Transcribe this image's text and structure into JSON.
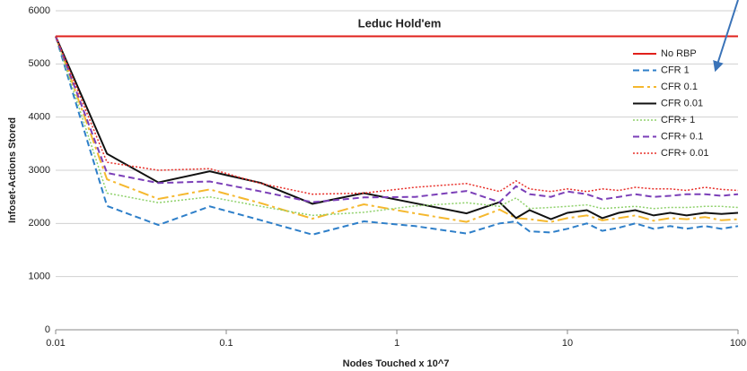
{
  "chart_data": {
    "type": "line",
    "title": "Leduc Hold'em",
    "xlabel": "Nodes Touched x 10^7",
    "ylabel": "Infoset-Actions Stored",
    "xscale": "log",
    "x": [
      0.01,
      0.02,
      0.04,
      0.08,
      0.16,
      0.32,
      0.64,
      1.28,
      2.56,
      4,
      5,
      6,
      8,
      10,
      13,
      16,
      20,
      25,
      32,
      40,
      50,
      64,
      80,
      100
    ],
    "xlim": [
      0.01,
      100
    ],
    "xticks": [
      0.01,
      0.1,
      1,
      10,
      100
    ],
    "ylim": [
      0,
      6000
    ],
    "yticks": [
      0,
      1000,
      2000,
      3000,
      4000,
      5000,
      6000
    ],
    "grid": true,
    "legend": "right",
    "series": [
      {
        "name": "No RBP",
        "color": "#e0201b",
        "dash": "solid",
        "width": 2,
        "values": [
          5520,
          5520,
          5520,
          5520,
          5520,
          5520,
          5520,
          5520,
          5520,
          5520,
          5520,
          5520,
          5520,
          5520,
          5520,
          5520,
          5520,
          5520,
          5520,
          5520,
          5520,
          5520,
          5520,
          5520
        ]
      },
      {
        "name": "CFR 1",
        "color": "#2e7fc9",
        "dash": "dashed",
        "width": 2,
        "values": [
          5520,
          2330,
          1970,
          2320,
          2060,
          1790,
          2040,
          1950,
          1810,
          2000,
          2040,
          1850,
          1830,
          1900,
          2000,
          1860,
          1920,
          2000,
          1900,
          1950,
          1900,
          1950,
          1900,
          1950
        ]
      },
      {
        "name": "CFR 0.1",
        "color": "#f5b82e",
        "dash": "dashdot",
        "width": 2,
        "values": [
          5520,
          2830,
          2460,
          2640,
          2380,
          2090,
          2360,
          2190,
          2030,
          2260,
          2100,
          2080,
          2030,
          2100,
          2150,
          2060,
          2100,
          2150,
          2050,
          2100,
          2080,
          2120,
          2060,
          2080
        ]
      },
      {
        "name": "CFR 0.01",
        "color": "#111111",
        "dash": "solid",
        "width": 2,
        "values": [
          5520,
          3310,
          2770,
          2980,
          2760,
          2370,
          2570,
          2380,
          2190,
          2400,
          2100,
          2250,
          2080,
          2200,
          2250,
          2100,
          2200,
          2250,
          2150,
          2200,
          2150,
          2200,
          2180,
          2200
        ]
      },
      {
        "name": "CFR+ 1",
        "color": "#8fd16b",
        "dash": "dotted",
        "width": 1.5,
        "values": [
          5520,
          2570,
          2390,
          2500,
          2320,
          2150,
          2210,
          2330,
          2390,
          2320,
          2480,
          2280,
          2300,
          2320,
          2350,
          2280,
          2300,
          2320,
          2280,
          2300,
          2300,
          2320,
          2320,
          2300
        ]
      },
      {
        "name": "CFR+ 0.1",
        "color": "#7b3fb8",
        "dash": "dashed",
        "width": 2,
        "values": [
          5520,
          2950,
          2760,
          2790,
          2600,
          2400,
          2490,
          2500,
          2610,
          2400,
          2700,
          2550,
          2500,
          2600,
          2550,
          2450,
          2500,
          2550,
          2500,
          2520,
          2550,
          2550,
          2520,
          2550
        ]
      },
      {
        "name": "CFR+ 0.01",
        "color": "#e8302a",
        "dash": "dotted",
        "width": 1.5,
        "values": [
          5520,
          3150,
          3000,
          3030,
          2750,
          2550,
          2570,
          2680,
          2750,
          2600,
          2800,
          2650,
          2600,
          2650,
          2600,
          2650,
          2620,
          2680,
          2650,
          2650,
          2620,
          2680,
          2640,
          2620
        ]
      }
    ]
  }
}
